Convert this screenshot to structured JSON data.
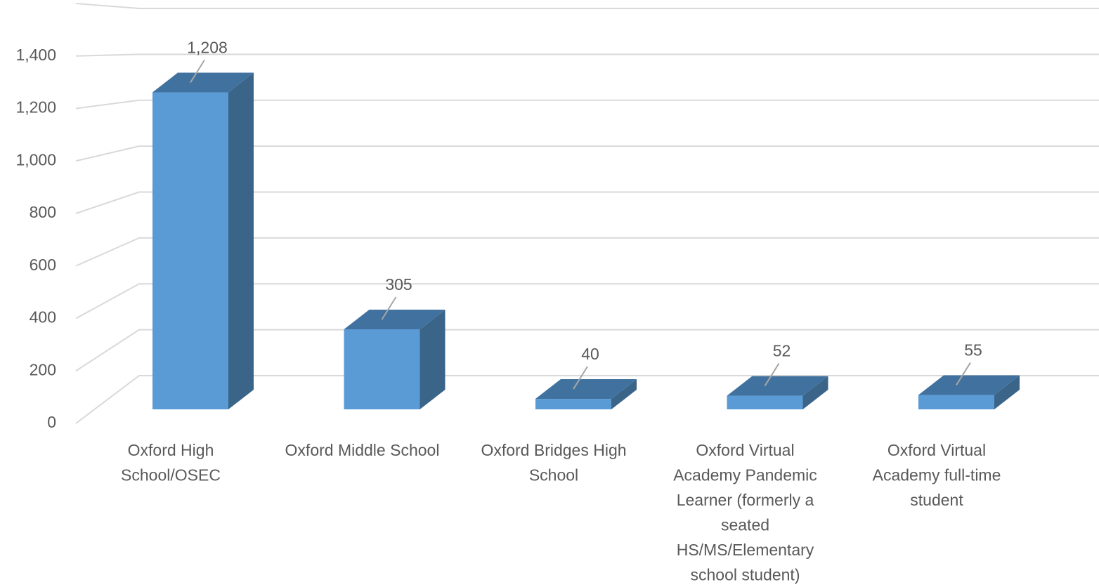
{
  "chart_data": {
    "type": "bar3d",
    "categories": [
      "Oxford High School/OSEC",
      "Oxford Middle School",
      "Oxford Bridges High School",
      "Oxford Virtual Academy Pandemic Learner (formerly a seated HS/MS/Elementary school student)",
      "Oxford Virtual Academy full-time student"
    ],
    "values": [
      1208,
      305,
      40,
      52,
      55
    ],
    "value_labels": [
      "1,208",
      "305",
      "40",
      "52",
      "55"
    ],
    "color": "#5b9bd5",
    "ylim": [
      0,
      1600
    ],
    "yticks": [
      0,
      200,
      400,
      600,
      800,
      {
        "value": 1000,
        "label": "1,000"
      },
      {
        "value": 1200,
        "label": "1,200"
      },
      {
        "value": 1400,
        "label": "1,400"
      }
    ],
    "grid": true
  }
}
